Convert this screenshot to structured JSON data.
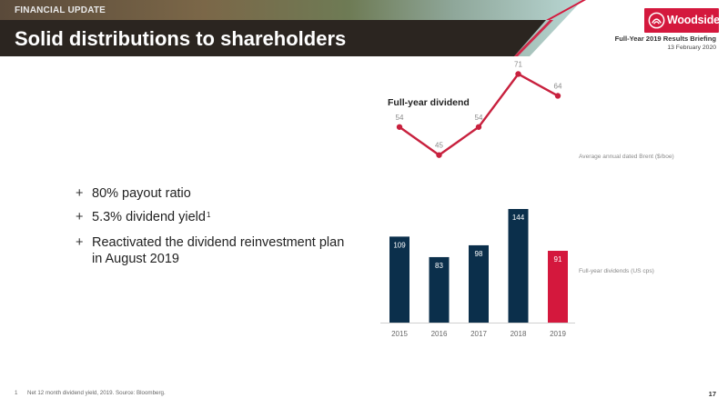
{
  "header": {
    "section_tag": "FINANCIAL UPDATE",
    "title": "Solid distributions to shareholders",
    "logo_text": "Woodside",
    "briefing_title": "Full-Year 2019 Results Briefing",
    "briefing_date": "13 February 2020"
  },
  "bullets": {
    "b1": "80% payout ratio",
    "b2": "5.3% dividend yield",
    "b2_sup": "1",
    "b3": "Reactivated the dividend reinvestment plan in August 2019",
    "marker": "+"
  },
  "chart_data": {
    "type": "bar",
    "title": "Full-year dividend",
    "categories": [
      "2015",
      "2016",
      "2017",
      "2018",
      "2019"
    ],
    "series": [
      {
        "name": "Full-year dividends (US cps)",
        "type": "bar",
        "values": [
          109,
          83,
          98,
          144,
          91
        ],
        "colors": [
          "#0b2f4b",
          "#0b2f4b",
          "#0b2f4b",
          "#0b2f4b",
          "#d4183d"
        ]
      },
      {
        "name": "Average annual dated Brent ($/boe)",
        "type": "line",
        "values": [
          54,
          45,
          54,
          71,
          64
        ],
        "color": "#c8213e"
      }
    ]
  },
  "footnote": {
    "number": "1",
    "text": "Net 12 month dividend yield, 2019. Source: Bloomberg."
  },
  "page_number": "17",
  "colors": {
    "brand_red": "#d4183d",
    "navy": "#0b2f4b",
    "banner": "#2b2520"
  }
}
